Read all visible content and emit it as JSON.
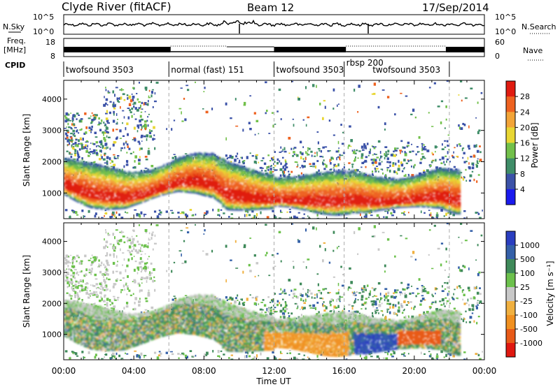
{
  "header": {
    "station": "Clyde River (fitACF)",
    "beam": "Beam 12",
    "date": "17/Sep/2014"
  },
  "noise_panel": {
    "left_label": "N.Sky",
    "right_label": "N.Search",
    "y_ticks_left": [
      "10^5",
      "10^0"
    ],
    "y_ticks_right": [
      "10^5",
      "10^0"
    ]
  },
  "freq_panel": {
    "left_label_1": "Freq.",
    "left_label_2": "[MHz]",
    "right_label": "Nave",
    "y_ticks_left": [
      "18",
      "8"
    ],
    "y_ticks_right": [
      "60",
      "0"
    ],
    "nave_dotted_segments": [
      [
        6.1,
        9.3
      ],
      [
        16.1,
        21.8
      ]
    ]
  },
  "cpid": {
    "label": "CPID",
    "modes": [
      {
        "name": "twofsound 3503",
        "start": 0.0,
        "end": 6.0
      },
      {
        "name": "normal (fast) 151",
        "start": 6.0,
        "end": 12.0
      },
      {
        "name": "twofsound 3503",
        "start": 12.0,
        "end": 16.0
      },
      {
        "name": "rbsp 200",
        "start": 16.0,
        "end": 17.5
      },
      {
        "name": "twofsound 3503",
        "start": 17.5,
        "end": 22.0
      }
    ],
    "boundaries_h": [
      6.0,
      12.0,
      16.0,
      22.0
    ]
  },
  "chart_data": [
    {
      "type": "heatmap",
      "panel": "power",
      "xlabel": "",
      "ylabel": "Slant Range [km]",
      "xlim": [
        0,
        24
      ],
      "ylim": [
        180,
        4600
      ],
      "yticks": [
        1000,
        2000,
        3000,
        4000
      ],
      "colorbar": {
        "label": "Power [dB]",
        "ticks": [
          "4",
          "8",
          "12",
          "16",
          "20",
          "24",
          "28"
        ],
        "colors": [
          "#1a1aee",
          "#3b52a8",
          "#3f8d68",
          "#72c04a",
          "#e8d633",
          "#f2a438",
          "#ee6220",
          "#e01b10"
        ]
      },
      "description_features": [
        {
          "x": [
            0.0,
            0.7,
            1.5,
            2.5,
            3.5,
            4.5,
            5.5,
            6.5,
            7.5,
            8.5,
            9.3,
            10.5,
            11.5,
            12.5,
            13.5,
            14.5,
            15.5,
            16.5,
            17.5,
            18.5,
            19.5,
            20.5,
            21.5,
            22.3
          ],
          "y": [
            1200,
            1050,
            900,
            820,
            760,
            860,
            1050,
            1250,
            1300,
            1220,
            900,
            780,
            720,
            700,
            680,
            660,
            660,
            700,
            640,
            640,
            680,
            760,
            820,
            700
          ]
        }
      ]
    },
    {
      "type": "heatmap",
      "panel": "velocity",
      "xlabel": "Time UT",
      "ylabel": "Slant Range [km]",
      "xlim": [
        0,
        24
      ],
      "ylim": [
        180,
        4600
      ],
      "yticks": [
        1000,
        2000,
        3000,
        4000
      ],
      "xticks": [
        "00:00",
        "04:00",
        "08:00",
        "12:00",
        "16:00",
        "20:00",
        "00:00"
      ],
      "colorbar": {
        "label": "Velocity [m s⁻¹]",
        "ticks": [
          "1000",
          "500",
          "100",
          "25",
          "-25",
          "-100",
          "-500",
          "-1000"
        ],
        "colors": [
          "#2a3ec0",
          "#3460a8",
          "#3f8a5a",
          "#6cc14c",
          "#c8c8c8",
          "#f0b040",
          "#f09020",
          "#e85a18",
          "#e01810"
        ]
      }
    }
  ]
}
